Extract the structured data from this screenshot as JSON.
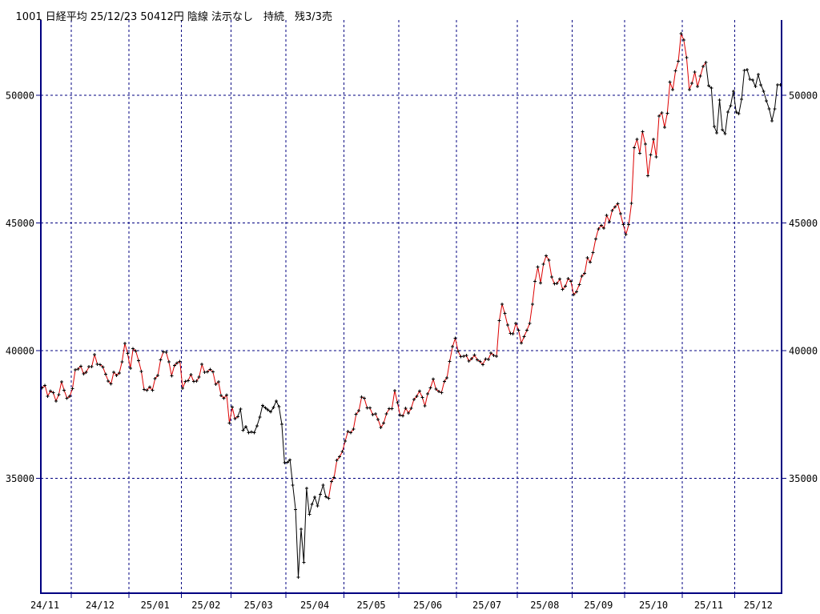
{
  "header": {
    "title": "1001 日経平均 25/12/23 50412円 陰線 法示なし　持続　残3/3売"
  },
  "colors": {
    "background": "#ffffff",
    "axis": "#000080",
    "grid": "#000080",
    "text": "#000000",
    "line_red": "#dd0000",
    "line_black": "#000000",
    "marker": "#000000"
  },
  "chart_data": {
    "type": "line",
    "title": "1001 日経平均 25/12/23 50412円 陰線 法示なし　持続　残3/3売",
    "xlabel": "",
    "ylabel": "",
    "grid": true,
    "marker": "plus",
    "y_ticks": [
      35000,
      40000,
      45000,
      50000
    ],
    "ylim": [
      30500,
      52950
    ],
    "x_labels": [
      "24/11",
      "24/12",
      "25/01",
      "25/02",
      "25/03",
      "25/04",
      "25/05",
      "25/06",
      "25/07",
      "25/08",
      "25/09",
      "25/10",
      "25/11",
      "25/12"
    ],
    "month_start_indices": [
      11,
      32,
      51,
      69,
      89,
      110,
      130,
      151,
      173,
      193,
      212,
      233,
      252
    ],
    "red_runs": [
      [
        0,
        71
      ],
      [
        104,
        241
      ]
    ],
    "values": [
      38535,
      38642,
      38220,
      38414,
      38352,
      38026,
      38283,
      38780,
      38442,
      38134,
      38208,
      38513,
      39248,
      39276,
      39396,
      39091,
      39160,
      39368,
      39372,
      39849,
      39470,
      39457,
      39364,
      39082,
      38814,
      38702,
      39161,
      39036,
      39130,
      39568,
      40281,
      39894,
      39307,
      40083,
      39981,
      39605,
      39190,
      38474,
      38444,
      38572,
      38451,
      38902,
      39027,
      39646,
      39958,
      39932,
      39565,
      39017,
      39414,
      39513,
      39572,
      38520,
      38798,
      38831,
      39066,
      38787,
      38801,
      38963,
      39461,
      39149,
      39174,
      39270,
      39164,
      38678,
      38776,
      38237,
      38142,
      38256,
      37156,
      37785,
      37331,
      37418,
      37704,
      36887,
      37028,
      36793,
      36819,
      36790,
      37053,
      37396,
      37845,
      37751,
      37677,
      37608,
      37780,
      38027,
      37799,
      37120,
      35617,
      35624,
      35725,
      34736,
      33780,
      31136,
      33012,
      31714,
      34609,
      33586,
      33982,
      34267,
      33920,
      34377,
      34730,
      34279,
      34220,
      34868,
      35039,
      35706,
      35840,
      36045,
      36452,
      36830,
      36779,
      36928,
      37503,
      37644,
      38183,
      38128,
      37755,
      37754,
      37499,
      37529,
      37298,
      36985,
      37160,
      37531,
      37724,
      37722,
      38433,
      37965,
      37471,
      37447,
      37748,
      37554,
      37742,
      38088,
      38211,
      38421,
      38173,
      37834,
      38311,
      38536,
      38885,
      38488,
      38403,
      38354,
      38790,
      38942,
      39584,
      40150,
      40487,
      39986,
      39762,
      39785,
      39810,
      39587,
      39688,
      39821,
      39646,
      39570,
      39459,
      39678,
      39663,
      39901,
      39819,
      39775,
      41171,
      41826,
      41456,
      40998,
      40674,
      40654,
      41069,
      40799,
      40290,
      40550,
      40794,
      41059,
      41820,
      42718,
      43274,
      42649,
      43378,
      43714,
      43546,
      42888,
      42610,
      42633,
      42807,
      42394,
      42520,
      42828,
      42718,
      42188,
      42310,
      42580,
      42922,
      43018,
      43643,
      43459,
      43837,
      44372,
      44768,
      44902,
      44790,
      45303,
      45045,
      45493,
      45630,
      45754,
      45355,
      44932,
      44551,
      44936,
      45770,
      47945,
      48278,
      47734,
      48580,
      48089,
      46847,
      47672,
      48277,
      47582,
      49185,
      49316,
      48742,
      49299,
      50512,
      50219,
      50959,
      51325,
      52411,
      52160,
      51470,
      50220,
      50470,
      50910,
      50340,
      50750,
      51130,
      51281,
      50380,
      50280,
      48780,
      48530,
      49810,
      48650,
      48500,
      49340,
      49600,
      50160,
      49340,
      49280,
      49840,
      50970,
      51000,
      50630,
      50600,
      50340,
      50810,
      50410,
      50160,
      49780,
      49470,
      49000,
      49470,
      50410,
      50412
    ]
  }
}
